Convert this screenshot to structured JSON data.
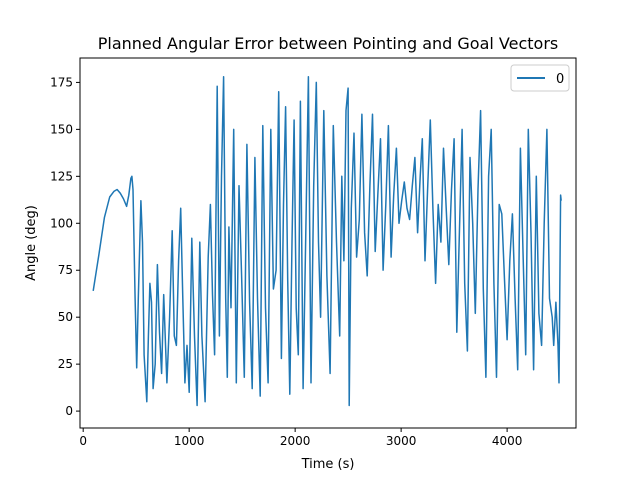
{
  "chart_data": {
    "type": "line",
    "title": "Planned Angular Error between Pointing and Goal Vectors",
    "xlabel": "Time (s)",
    "ylabel": "Angle (deg)",
    "xlim": [
      -30,
      4650
    ],
    "ylim": [
      -9,
      188
    ],
    "xticks": [
      0,
      1000,
      2000,
      3000,
      4000
    ],
    "xtick_labels": [
      "0",
      "1000",
      "2000",
      "3000",
      "4000"
    ],
    "yticks": [
      0,
      25,
      50,
      75,
      100,
      125,
      150,
      175
    ],
    "ytick_labels": [
      "0",
      "25",
      "50",
      "75",
      "100",
      "125",
      "150",
      "175"
    ],
    "grid": false,
    "legend": {
      "position": "top-right",
      "entries": [
        "0"
      ]
    },
    "colors": {
      "series": "#1f77b4",
      "axes": "#000000",
      "background": "#ffffff"
    },
    "series": [
      {
        "name": "0",
        "points": [
          [
            95,
            64
          ],
          [
            150,
            84
          ],
          [
            200,
            103
          ],
          [
            250,
            114
          ],
          [
            290,
            117
          ],
          [
            320,
            118
          ],
          [
            350,
            116
          ],
          [
            380,
            113
          ],
          [
            410,
            109
          ],
          [
            430,
            115
          ],
          [
            450,
            124
          ],
          [
            460,
            125
          ],
          [
            470,
            118
          ],
          [
            490,
            60
          ],
          [
            505,
            23
          ],
          [
            520,
            60
          ],
          [
            545,
            112
          ],
          [
            560,
            90
          ],
          [
            575,
            30
          ],
          [
            600,
            5
          ],
          [
            615,
            40
          ],
          [
            630,
            68
          ],
          [
            645,
            58
          ],
          [
            660,
            12
          ],
          [
            680,
            25
          ],
          [
            700,
            78
          ],
          [
            720,
            42
          ],
          [
            740,
            20
          ],
          [
            760,
            62
          ],
          [
            790,
            15
          ],
          [
            815,
            50
          ],
          [
            840,
            96
          ],
          [
            860,
            40
          ],
          [
            880,
            35
          ],
          [
            900,
            80
          ],
          [
            920,
            108
          ],
          [
            940,
            60
          ],
          [
            960,
            15
          ],
          [
            980,
            35
          ],
          [
            1000,
            10
          ],
          [
            1025,
            92
          ],
          [
            1050,
            40
          ],
          [
            1075,
            3
          ],
          [
            1100,
            90
          ],
          [
            1120,
            40
          ],
          [
            1150,
            5
          ],
          [
            1180,
            82
          ],
          [
            1200,
            110
          ],
          [
            1220,
            62
          ],
          [
            1240,
            30
          ],
          [
            1265,
            173
          ],
          [
            1285,
            40
          ],
          [
            1305,
            125
          ],
          [
            1325,
            178
          ],
          [
            1345,
            60
          ],
          [
            1360,
            18
          ],
          [
            1375,
            98
          ],
          [
            1395,
            55
          ],
          [
            1420,
            150
          ],
          [
            1445,
            15
          ],
          [
            1470,
            120
          ],
          [
            1495,
            72
          ],
          [
            1520,
            18
          ],
          [
            1545,
            142
          ],
          [
            1570,
            58
          ],
          [
            1595,
            12
          ],
          [
            1620,
            135
          ],
          [
            1645,
            60
          ],
          [
            1670,
            8
          ],
          [
            1695,
            152
          ],
          [
            1720,
            55
          ],
          [
            1745,
            15
          ],
          [
            1770,
            150
          ],
          [
            1795,
            65
          ],
          [
            1820,
            75
          ],
          [
            1845,
            170
          ],
          [
            1870,
            28
          ],
          [
            1890,
            110
          ],
          [
            1910,
            162
          ],
          [
            1930,
            70
          ],
          [
            1950,
            9
          ],
          [
            1970,
            90
          ],
          [
            1990,
            155
          ],
          [
            2010,
            55
          ],
          [
            2030,
            30
          ],
          [
            2050,
            165
          ],
          [
            2075,
            12
          ],
          [
            2100,
            92
          ],
          [
            2125,
            178
          ],
          [
            2150,
            15
          ],
          [
            2175,
            120
          ],
          [
            2200,
            175
          ],
          [
            2220,
            90
          ],
          [
            2240,
            50
          ],
          [
            2270,
            160
          ],
          [
            2300,
            72
          ],
          [
            2330,
            20
          ],
          [
            2360,
            152
          ],
          [
            2390,
            90
          ],
          [
            2420,
            40
          ],
          [
            2440,
            125
          ],
          [
            2460,
            80
          ],
          [
            2480,
            160
          ],
          [
            2500,
            172
          ],
          [
            2510,
            3
          ],
          [
            2530,
            108
          ],
          [
            2555,
            148
          ],
          [
            2580,
            82
          ],
          [
            2605,
            102
          ],
          [
            2630,
            158
          ],
          [
            2655,
            95
          ],
          [
            2680,
            72
          ],
          [
            2705,
            120
          ],
          [
            2730,
            158
          ],
          [
            2755,
            85
          ],
          [
            2780,
            115
          ],
          [
            2805,
            145
          ],
          [
            2830,
            75
          ],
          [
            2855,
            110
          ],
          [
            2880,
            152
          ],
          [
            2905,
            82
          ],
          [
            2930,
            115
          ],
          [
            2955,
            140
          ],
          [
            2980,
            100
          ],
          [
            3005,
            112
          ],
          [
            3030,
            122
          ],
          [
            3055,
            108
          ],
          [
            3080,
            102
          ],
          [
            3105,
            120
          ],
          [
            3130,
            135
          ],
          [
            3155,
            95
          ],
          [
            3180,
            125
          ],
          [
            3200,
            145
          ],
          [
            3225,
            80
          ],
          [
            3250,
            118
          ],
          [
            3275,
            155
          ],
          [
            3300,
            108
          ],
          [
            3325,
            68
          ],
          [
            3350,
            110
          ],
          [
            3375,
            90
          ],
          [
            3400,
            140
          ],
          [
            3425,
            108
          ],
          [
            3450,
            78
          ],
          [
            3475,
            118
          ],
          [
            3500,
            145
          ],
          [
            3525,
            42
          ],
          [
            3550,
            95
          ],
          [
            3575,
            150
          ],
          [
            3600,
            68
          ],
          [
            3625,
            32
          ],
          [
            3650,
            135
          ],
          [
            3675,
            100
          ],
          [
            3700,
            52
          ],
          [
            3725,
            118
          ],
          [
            3750,
            160
          ],
          [
            3775,
            65
          ],
          [
            3800,
            18
          ],
          [
            3825,
            125
          ],
          [
            3850,
            150
          ],
          [
            3875,
            68
          ],
          [
            3900,
            18
          ],
          [
            3925,
            110
          ],
          [
            3950,
            105
          ],
          [
            3975,
            70
          ],
          [
            4000,
            38
          ],
          [
            4025,
            80
          ],
          [
            4050,
            105
          ],
          [
            4075,
            60
          ],
          [
            4100,
            22
          ],
          [
            4125,
            140
          ],
          [
            4150,
            85
          ],
          [
            4175,
            30
          ],
          [
            4200,
            150
          ],
          [
            4225,
            95
          ],
          [
            4250,
            22
          ],
          [
            4275,
            125
          ],
          [
            4300,
            52
          ],
          [
            4325,
            35
          ],
          [
            4350,
            100
          ],
          [
            4375,
            150
          ],
          [
            4400,
            60
          ],
          [
            4425,
            50
          ],
          [
            4440,
            35
          ],
          [
            4460,
            58
          ],
          [
            4480,
            35
          ],
          [
            4490,
            15
          ],
          [
            4505,
            115
          ],
          [
            4510,
            112
          ]
        ]
      }
    ]
  }
}
